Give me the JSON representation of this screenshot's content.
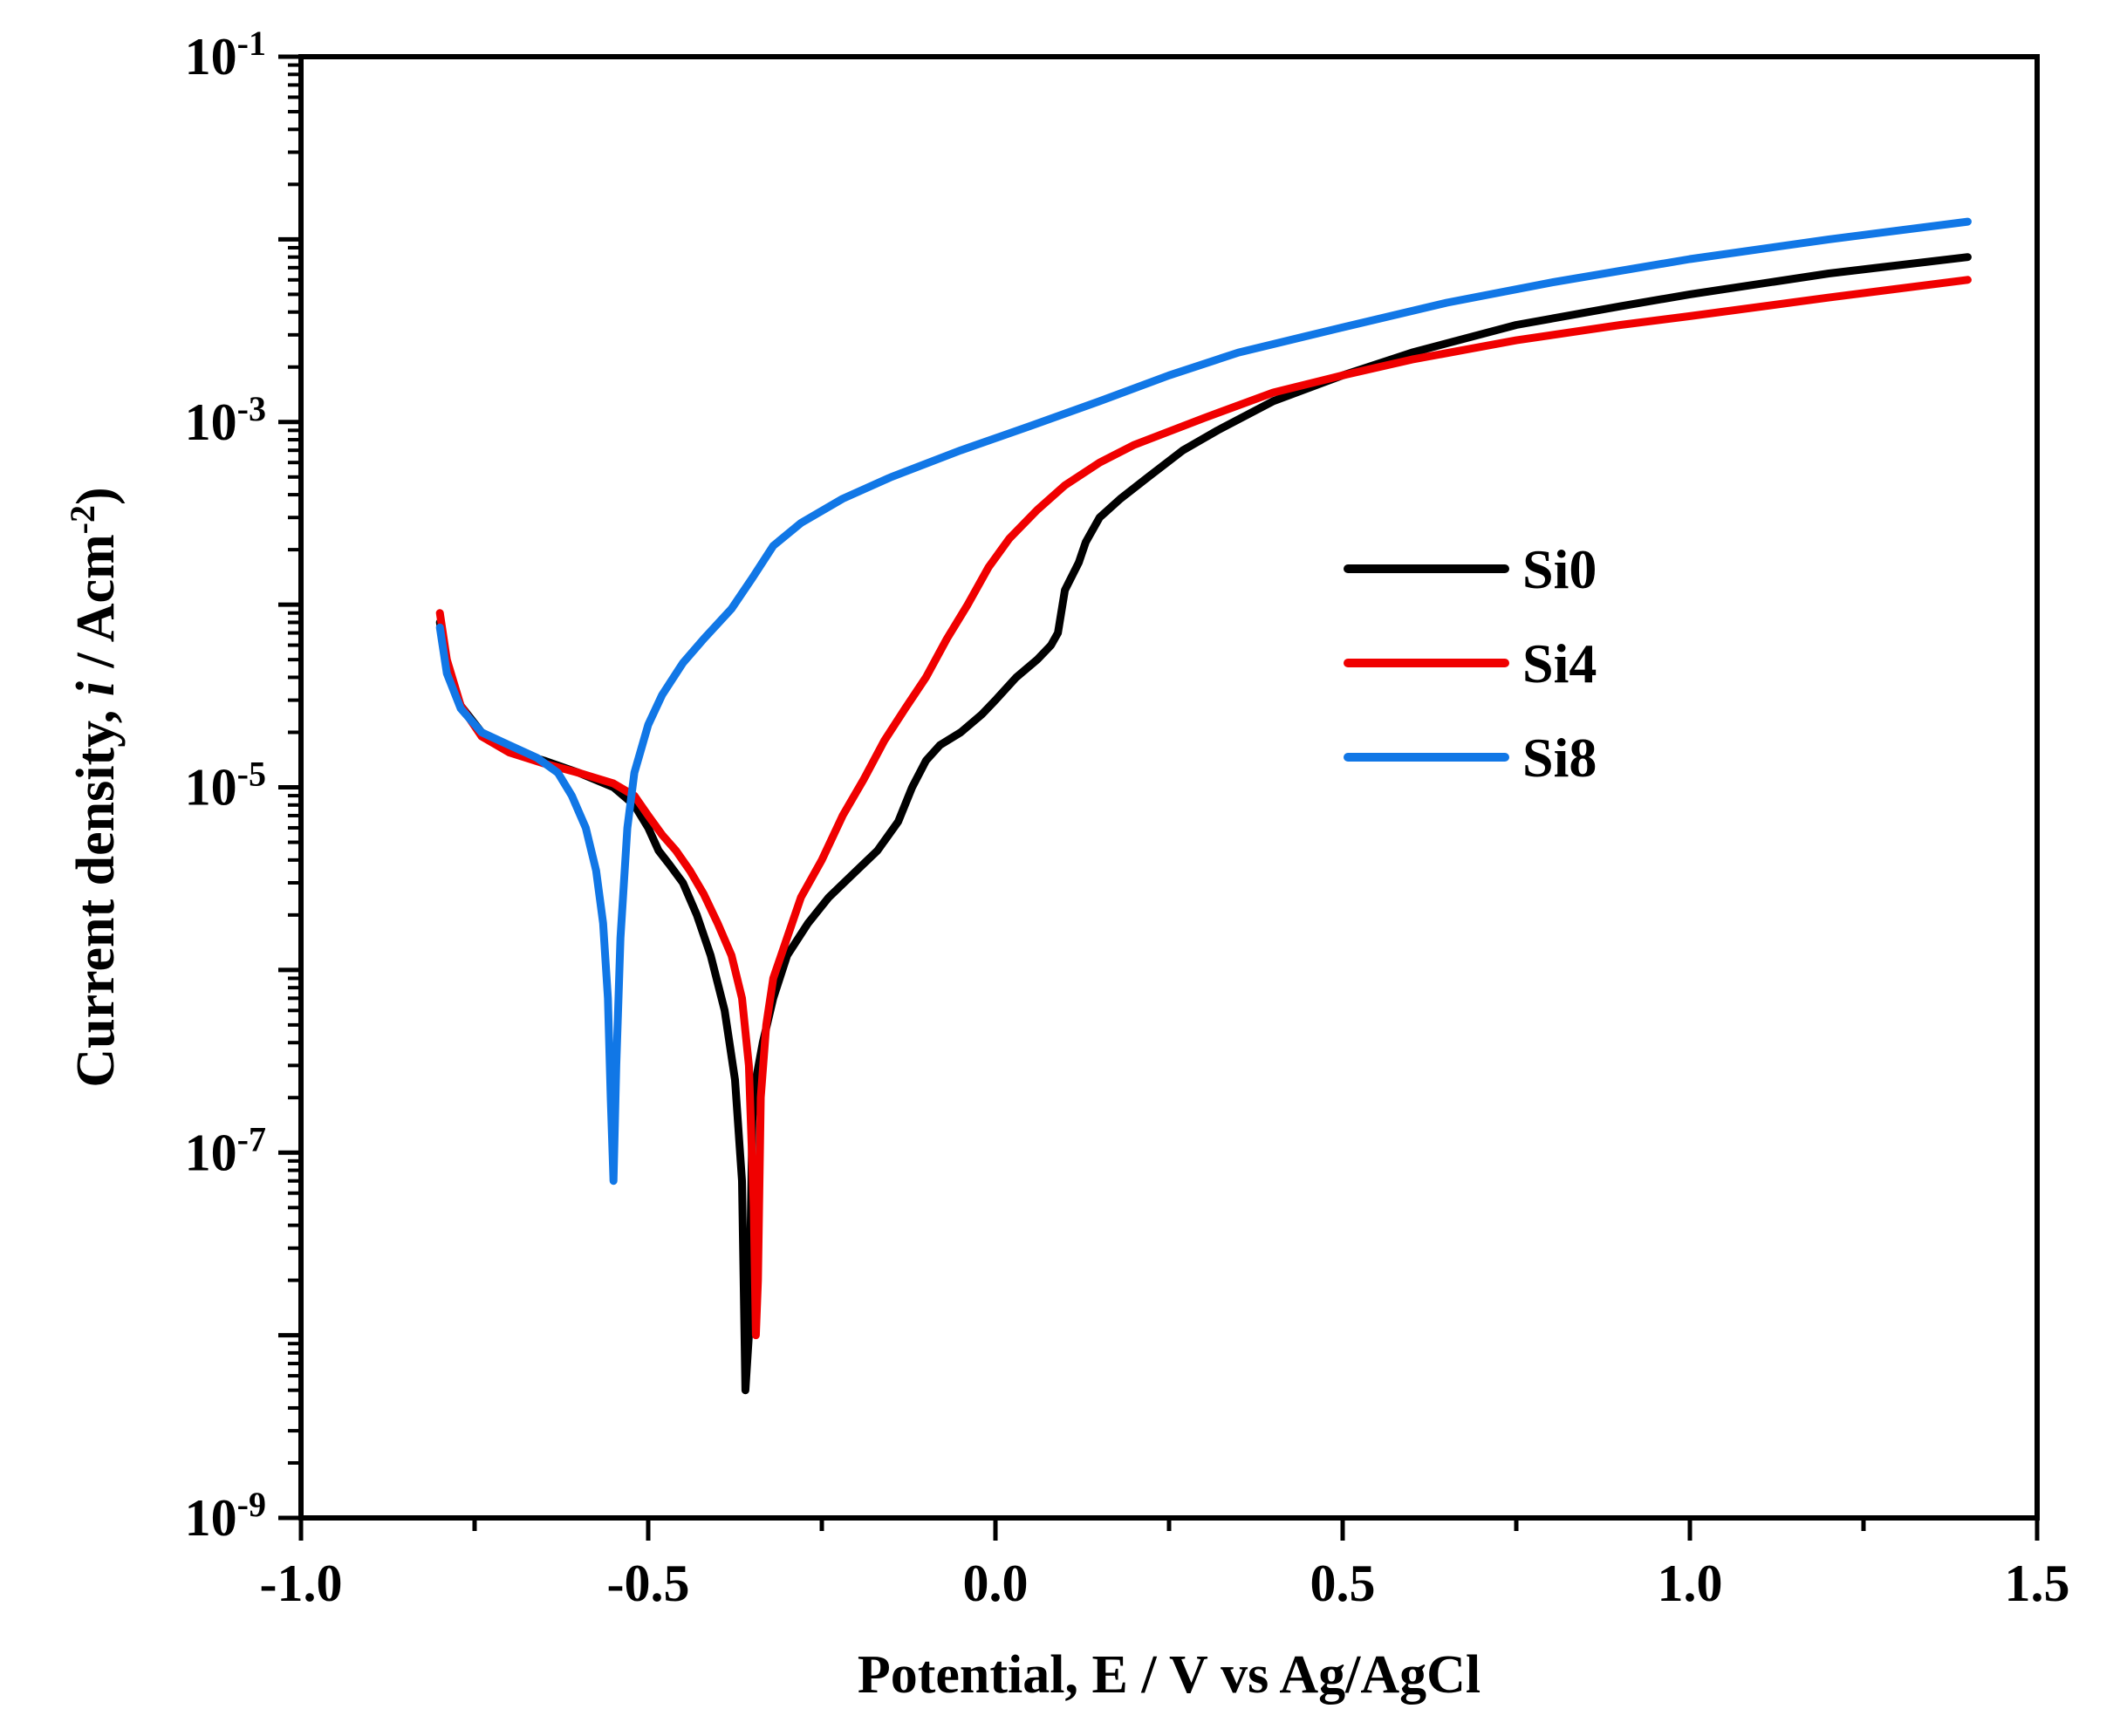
{
  "chart_data": {
    "type": "line",
    "xlabel": "Potential, E / V vs Ag/AgCl",
    "ylabel_parts": [
      "Current density, ",
      "i",
      " / Acm",
      "-2",
      ")"
    ],
    "ylabel": "Current density, i / Acm-2)",
    "xlim": [
      -1.0,
      1.5
    ],
    "ylim": [
      1e-09,
      0.1
    ],
    "yscale": "log",
    "x_ticks": [
      -1.0,
      -0.5,
      0.0,
      0.5,
      1.0,
      1.5
    ],
    "x_tick_labels": [
      "-1.0",
      "-0.5",
      "0.0",
      "0.5",
      "1.0",
      "1.5"
    ],
    "y_ticks": [
      1e-09,
      1e-07,
      1e-05,
      0.001,
      0.1
    ],
    "y_tick_labels": [
      {
        "base": "10",
        "exp": "-9"
      },
      {
        "base": "10",
        "exp": "-7"
      },
      {
        "base": "10",
        "exp": "-5"
      },
      {
        "base": "10",
        "exp": "-3"
      },
      {
        "base": "10",
        "exp": "-1"
      }
    ],
    "legend_position": "center-right",
    "series": [
      {
        "name": "Si0",
        "color": "#000000",
        "points": [
          [
            -0.8,
            8e-05
          ],
          [
            -0.79,
            4.5e-05
          ],
          [
            -0.77,
            2.8e-05
          ],
          [
            -0.74,
            2e-05
          ],
          [
            -0.7,
            1.6e-05
          ],
          [
            -0.65,
            1.4e-05
          ],
          [
            -0.6,
            1.2e-05
          ],
          [
            -0.55,
            1e-05
          ],
          [
            -0.52,
            8e-06
          ],
          [
            -0.5,
            6e-06
          ],
          [
            -0.485,
            4.5e-06
          ],
          [
            -0.47,
            3.8e-06
          ],
          [
            -0.45,
            3e-06
          ],
          [
            -0.43,
            2e-06
          ],
          [
            -0.41,
            1.2e-06
          ],
          [
            -0.39,
            6e-07
          ],
          [
            -0.375,
            2.5e-07
          ],
          [
            -0.365,
            7e-08
          ],
          [
            -0.36,
            5e-09
          ],
          [
            -0.355,
            1e-08
          ],
          [
            -0.35,
            1.5e-07
          ],
          [
            -0.345,
            2.5e-07
          ],
          [
            -0.335,
            4e-07
          ],
          [
            -0.32,
            7e-07
          ],
          [
            -0.3,
            1.2e-06
          ],
          [
            -0.27,
            1.8e-06
          ],
          [
            -0.24,
            2.5e-06
          ],
          [
            -0.2,
            3.5e-06
          ],
          [
            -0.17,
            4.5e-06
          ],
          [
            -0.14,
            6.5e-06
          ],
          [
            -0.12,
            1e-05
          ],
          [
            -0.1,
            1.4e-05
          ],
          [
            -0.08,
            1.7e-05
          ],
          [
            -0.05,
            2e-05
          ],
          [
            -0.02,
            2.5e-05
          ],
          [
            0.0,
            3e-05
          ],
          [
            0.03,
            4e-05
          ],
          [
            0.06,
            5e-05
          ],
          [
            0.08,
            6e-05
          ],
          [
            0.09,
            7e-05
          ],
          [
            0.1,
            0.00012
          ],
          [
            0.12,
            0.00017
          ],
          [
            0.13,
            0.00022
          ],
          [
            0.15,
            0.0003
          ],
          [
            0.18,
            0.00038
          ],
          [
            0.22,
            0.0005
          ],
          [
            0.27,
            0.0007
          ],
          [
            0.32,
            0.0009
          ],
          [
            0.4,
            0.0013
          ],
          [
            0.5,
            0.0018
          ],
          [
            0.6,
            0.0024
          ],
          [
            0.75,
            0.0034
          ],
          [
            0.9,
            0.0043
          ],
          [
            1.0,
            0.005
          ],
          [
            1.2,
            0.0065
          ],
          [
            1.4,
            0.008
          ]
        ]
      },
      {
        "name": "Si4",
        "color": "#f00000",
        "points": [
          [
            -0.8,
            9e-05
          ],
          [
            -0.79,
            5e-05
          ],
          [
            -0.77,
            2.8e-05
          ],
          [
            -0.74,
            1.9e-05
          ],
          [
            -0.7,
            1.55e-05
          ],
          [
            -0.65,
            1.35e-05
          ],
          [
            -0.6,
            1.2e-05
          ],
          [
            -0.55,
            1.05e-05
          ],
          [
            -0.52,
            9e-06
          ],
          [
            -0.5,
            7e-06
          ],
          [
            -0.48,
            5.5e-06
          ],
          [
            -0.46,
            4.5e-06
          ],
          [
            -0.44,
            3.5e-06
          ],
          [
            -0.42,
            2.6e-06
          ],
          [
            -0.4,
            1.8e-06
          ],
          [
            -0.38,
            1.2e-06
          ],
          [
            -0.365,
            7e-07
          ],
          [
            -0.355,
            3e-07
          ],
          [
            -0.348,
            5e-08
          ],
          [
            -0.345,
            1e-08
          ],
          [
            -0.342,
            2e-08
          ],
          [
            -0.338,
            2e-07
          ],
          [
            -0.33,
            5e-07
          ],
          [
            -0.32,
            9e-07
          ],
          [
            -0.3,
            1.5e-06
          ],
          [
            -0.28,
            2.5e-06
          ],
          [
            -0.25,
            4e-06
          ],
          [
            -0.22,
            7e-06
          ],
          [
            -0.19,
            1.1e-05
          ],
          [
            -0.16,
            1.8e-05
          ],
          [
            -0.13,
            2.7e-05
          ],
          [
            -0.1,
            4e-05
          ],
          [
            -0.07,
            6.5e-05
          ],
          [
            -0.04,
            0.0001
          ],
          [
            -0.01,
            0.00016
          ],
          [
            0.02,
            0.00023
          ],
          [
            0.06,
            0.00033
          ],
          [
            0.1,
            0.00045
          ],
          [
            0.15,
            0.0006
          ],
          [
            0.2,
            0.00075
          ],
          [
            0.3,
            0.00105
          ],
          [
            0.4,
            0.00145
          ],
          [
            0.5,
            0.0018
          ],
          [
            0.6,
            0.0022
          ],
          [
            0.75,
            0.0028
          ],
          [
            0.9,
            0.0034
          ],
          [
            1.0,
            0.0038
          ],
          [
            1.2,
            0.0048
          ],
          [
            1.4,
            0.006
          ]
        ]
      },
      {
        "name": "Si8",
        "color": "#1177e6",
        "points": [
          [
            -0.8,
            7.5e-05
          ],
          [
            -0.79,
            4.2e-05
          ],
          [
            -0.77,
            2.7e-05
          ],
          [
            -0.74,
            2e-05
          ],
          [
            -0.7,
            1.7e-05
          ],
          [
            -0.66,
            1.45e-05
          ],
          [
            -0.63,
            1.2e-05
          ],
          [
            -0.61,
            9e-06
          ],
          [
            -0.59,
            6e-06
          ],
          [
            -0.575,
            3.5e-06
          ],
          [
            -0.565,
            1.8e-06
          ],
          [
            -0.558,
            7e-07
          ],
          [
            -0.554,
            2e-07
          ],
          [
            -0.55,
            7e-08
          ],
          [
            -0.546,
            3e-07
          ],
          [
            -0.54,
            1.5e-06
          ],
          [
            -0.53,
            6e-06
          ],
          [
            -0.52,
            1.2e-05
          ],
          [
            -0.5,
            2.2e-05
          ],
          [
            -0.48,
            3.2e-05
          ],
          [
            -0.45,
            4.8e-05
          ],
          [
            -0.42,
            6.5e-05
          ],
          [
            -0.38,
            9.5e-05
          ],
          [
            -0.35,
            0.00014
          ],
          [
            -0.32,
            0.00021
          ],
          [
            -0.28,
            0.00028
          ],
          [
            -0.22,
            0.00038
          ],
          [
            -0.15,
            0.0005
          ],
          [
            -0.05,
            0.0007
          ],
          [
            0.05,
            0.00095
          ],
          [
            0.15,
            0.0013
          ],
          [
            0.25,
            0.0018
          ],
          [
            0.35,
            0.0024
          ],
          [
            0.5,
            0.0033
          ],
          [
            0.65,
            0.0045
          ],
          [
            0.8,
            0.0058
          ],
          [
            1.0,
            0.0078
          ],
          [
            1.2,
            0.01
          ],
          [
            1.4,
            0.0125
          ]
        ]
      }
    ]
  }
}
